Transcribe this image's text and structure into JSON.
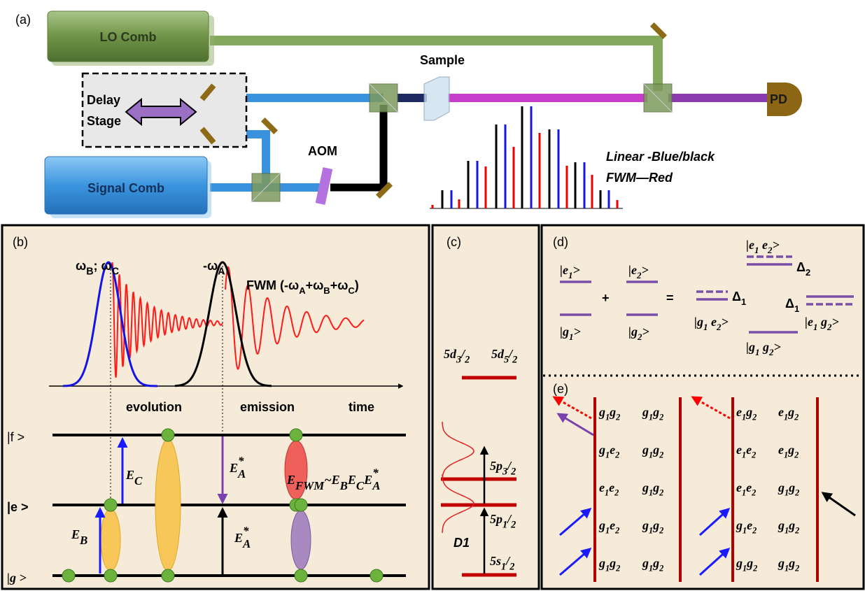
{
  "panel_a": {
    "label": "(a)",
    "lo_comb": "LO Comb",
    "sample": "Sample",
    "delay_stage": [
      "Delay",
      "Stage"
    ],
    "aom": "AOM",
    "pd": "PD",
    "signal_comb": "Signal Comb",
    "legend": [
      "Linear -Blue/black",
      "FWM—Red"
    ]
  },
  "panel_b": {
    "label": "(b)",
    "omega_bc": [
      "ω",
      {
        "sub": "B"
      },
      "; ω",
      {
        "sub": "C"
      }
    ],
    "omega_a": [
      "-ω",
      {
        "sub": "A"
      }
    ],
    "fwm": [
      "FWM (-ω",
      {
        "sub": "A"
      },
      "+ω",
      {
        "sub": "B"
      },
      "+ω",
      {
        "sub": "C"
      },
      ")"
    ],
    "axis_labels": [
      "evolution",
      "emission",
      "time"
    ],
    "levels": [
      "|f >",
      "|e >",
      "|g >"
    ],
    "e_c": [
      "E",
      {
        "sub": "C"
      }
    ],
    "e_a_upper": [
      "E",
      {
        "sub": "A",
        "sup": "*"
      }
    ],
    "e_fwm": [
      "E",
      {
        "sub": "FWM"
      },
      "~E",
      {
        "sub": "B"
      },
      "E",
      {
        "sub": "C"
      },
      "E",
      {
        "sub": "A",
        "sup": "*"
      }
    ],
    "e_b": [
      "E",
      {
        "sub": "B"
      }
    ],
    "e_a_lower": [
      "E",
      {
        "sub": "A",
        "sup": "*"
      }
    ]
  },
  "panel_c": {
    "label": "(c)",
    "d32": [
      "5d",
      {
        "sub": "3"
      },
      "/",
      {
        "sub": "2"
      }
    ],
    "d52": [
      "5d",
      {
        "sub": "5"
      },
      "/",
      {
        "sub": "2"
      }
    ],
    "p32": [
      "5p",
      {
        "sub": "3"
      },
      "/",
      {
        "sub": "2"
      }
    ],
    "p12": [
      "5p",
      {
        "sub": "1"
      },
      "/",
      {
        "sub": "2"
      }
    ],
    "s12": [
      "5s",
      {
        "sub": "1"
      },
      "/",
      {
        "sub": "2"
      }
    ],
    "d1": "D1"
  },
  "panel_d": {
    "label": "(d)",
    "e1": [
      "|e",
      {
        "sub": "1"
      },
      ">"
    ],
    "g1": [
      "|g",
      {
        "sub": "1"
      },
      ">"
    ],
    "plus": "+",
    "e2": [
      "|e",
      {
        "sub": "2"
      },
      ">"
    ],
    "g2": [
      "|g",
      {
        "sub": "2"
      },
      ">"
    ],
    "equals": "=",
    "e1e2": [
      "|e",
      {
        "sub": "1"
      },
      " e",
      {
        "sub": "2"
      },
      ">"
    ],
    "delta2": [
      "Δ",
      {
        "sub": "2"
      }
    ],
    "delta1_left": [
      "Δ",
      {
        "sub": "1"
      }
    ],
    "g1e2": [
      "|g",
      {
        "sub": "1"
      },
      " e",
      {
        "sub": "2"
      },
      ">"
    ],
    "delta1_right": [
      "Δ",
      {
        "sub": "1"
      }
    ],
    "e1g2": [
      "|e",
      {
        "sub": "1"
      },
      " g",
      {
        "sub": "2"
      },
      ">"
    ],
    "g1g2": [
      "|g",
      {
        "sub": "1"
      },
      " g",
      {
        "sub": "2"
      },
      ">"
    ]
  },
  "panel_e": {
    "label": "(e)",
    "left": [
      [
        [
          "g",
          {
            "sub": "1"
          },
          "g",
          {
            "sub": "2"
          }
        ],
        [
          "g",
          {
            "sub": "1"
          },
          "g",
          {
            "sub": "2"
          }
        ]
      ],
      [
        [
          "g",
          {
            "sub": "1"
          },
          "e",
          {
            "sub": "2"
          }
        ],
        [
          "g",
          {
            "sub": "1"
          },
          "g",
          {
            "sub": "2"
          }
        ]
      ],
      [
        [
          "e",
          {
            "sub": "1"
          },
          "e",
          {
            "sub": "2"
          }
        ],
        [
          "g",
          {
            "sub": "1"
          },
          "g",
          {
            "sub": "2"
          }
        ]
      ],
      [
        [
          "g",
          {
            "sub": "1"
          },
          "e",
          {
            "sub": "2"
          }
        ],
        [
          "g",
          {
            "sub": "1"
          },
          "g",
          {
            "sub": "2"
          }
        ]
      ],
      [
        [
          "g",
          {
            "sub": "1"
          },
          "g",
          {
            "sub": "2"
          }
        ],
        [
          "g",
          {
            "sub": "1"
          },
          "g",
          {
            "sub": "2"
          }
        ]
      ]
    ],
    "right": [
      [
        [
          "e",
          {
            "sub": "1"
          },
          "g",
          {
            "sub": "2"
          }
        ],
        [
          "e",
          {
            "sub": "1"
          },
          "g",
          {
            "sub": "2"
          }
        ]
      ],
      [
        [
          "e",
          {
            "sub": "1"
          },
          "e",
          {
            "sub": "2"
          }
        ],
        [
          "e",
          {
            "sub": "1"
          },
          "g",
          {
            "sub": "2"
          }
        ]
      ],
      [
        [
          "e",
          {
            "sub": "1"
          },
          "e",
          {
            "sub": "2"
          }
        ],
        [
          "g",
          {
            "sub": "1"
          },
          "g",
          {
            "sub": "2"
          }
        ]
      ],
      [
        [
          "g",
          {
            "sub": "1"
          },
          "e",
          {
            "sub": "2"
          }
        ],
        [
          "g",
          {
            "sub": "1"
          },
          "g",
          {
            "sub": "2"
          }
        ]
      ],
      [
        [
          "g",
          {
            "sub": "1"
          },
          "g",
          {
            "sub": "2"
          }
        ],
        [
          "g",
          {
            "sub": "1"
          },
          "g",
          {
            "sub": "2"
          }
        ]
      ]
    ]
  }
}
